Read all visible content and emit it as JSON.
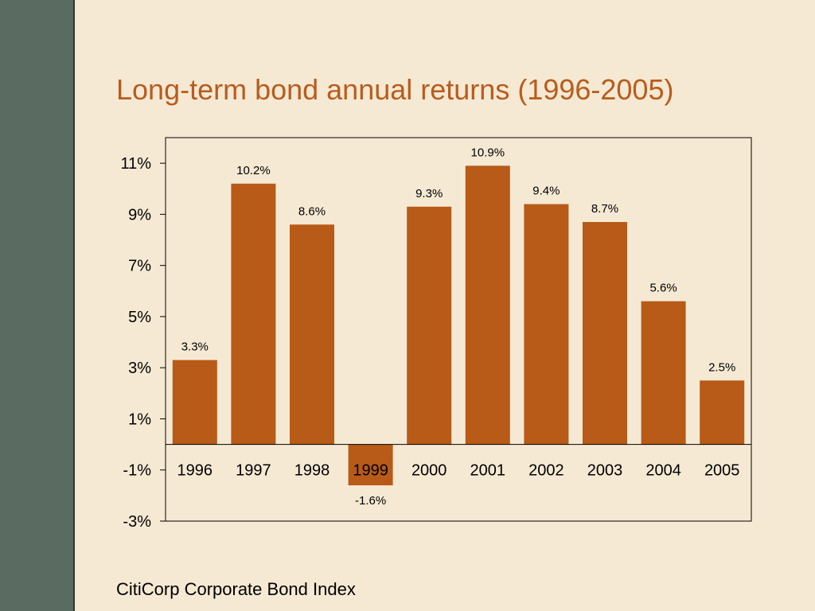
{
  "slide": {
    "title": "Long-term bond annual returns (1996-2005)",
    "footnote": "CitiCorp Corporate Bond Index"
  },
  "colors": {
    "background": "#f5e9d3",
    "sidebar": "#5a6b62",
    "title": "#b85c1e",
    "bar": "#b85a18"
  },
  "chart_data": {
    "type": "bar",
    "categories": [
      "1996",
      "1997",
      "1998",
      "1999",
      "2000",
      "2001",
      "2002",
      "2003",
      "2004",
      "2005"
    ],
    "values": [
      3.3,
      10.2,
      8.6,
      -1.6,
      9.3,
      10.9,
      9.4,
      8.7,
      5.6,
      2.5
    ],
    "data_labels": [
      "3.3%",
      "10.2%",
      "8.6%",
      "-1.6%",
      "9.3%",
      "10.9%",
      "9.4%",
      "8.7%",
      "5.6%",
      "2.5%"
    ],
    "yticks": [
      11,
      9,
      7,
      5,
      3,
      1,
      -1,
      -3
    ],
    "ytick_labels": [
      "11%",
      "9%",
      "7%",
      "5%",
      "3%",
      "1%",
      "-1%",
      "-3%"
    ],
    "ylim": [
      -3,
      12
    ],
    "grid": false,
    "legend": "none"
  }
}
